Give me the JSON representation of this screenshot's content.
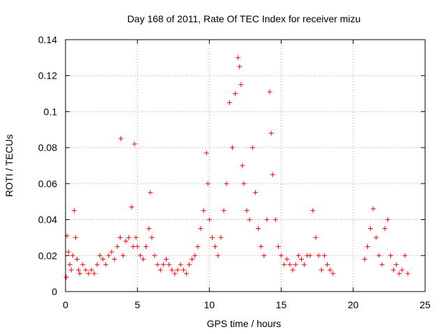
{
  "chart_data": {
    "type": "scatter",
    "title": "Day 168 of 2011, Rate Of TEC Index for receiver mizu",
    "xlabel": "GPS time / hours",
    "ylabel": "ROTI / TECUs",
    "xlim": [
      0,
      25
    ],
    "ylim": [
      0,
      0.14
    ],
    "xticks": [
      0,
      5,
      10,
      15,
      20,
      25
    ],
    "xtick_labels": [
      "0",
      "5",
      "10",
      "15",
      "20",
      "25"
    ],
    "yticks": [
      0,
      0.02,
      0.04,
      0.06,
      0.08,
      0.1,
      0.12,
      0.14
    ],
    "ytick_labels": [
      "0",
      "0.02",
      "0.04",
      "0.06",
      "0.08",
      "0.1",
      "0.12",
      "0.14"
    ],
    "grid": true,
    "marker": "+",
    "color": "#ff0000",
    "series": [
      {
        "name": "ROTI",
        "note": "representative sample of dense red + markers, estimated from the plot",
        "x": [
          0.05,
          0.1,
          0.2,
          0.3,
          0.4,
          0.5,
          0.6,
          0.7,
          0.8,
          0.9,
          1.0,
          1.2,
          1.4,
          1.6,
          1.8,
          2.0,
          2.2,
          2.4,
          2.6,
          2.8,
          3.0,
          3.2,
          3.4,
          3.6,
          3.8,
          3.85,
          4.0,
          4.2,
          4.4,
          4.6,
          4.7,
          4.8,
          4.9,
          5.0,
          5.2,
          5.4,
          5.6,
          5.8,
          5.9,
          6.0,
          6.2,
          6.4,
          6.6,
          6.8,
          7.0,
          7.2,
          7.4,
          7.6,
          7.8,
          8.0,
          8.2,
          8.4,
          8.6,
          8.8,
          9.0,
          9.2,
          9.4,
          9.6,
          9.8,
          9.9,
          10.0,
          10.2,
          10.4,
          10.6,
          10.8,
          11.0,
          11.2,
          11.4,
          11.6,
          11.8,
          12.0,
          12.1,
          12.2,
          12.3,
          12.4,
          12.6,
          12.8,
          13.0,
          13.2,
          13.4,
          13.6,
          13.8,
          14.0,
          14.2,
          14.3,
          14.4,
          14.6,
          14.8,
          15.0,
          15.2,
          15.4,
          15.6,
          15.8,
          16.0,
          16.2,
          16.4,
          16.6,
          16.8,
          17.0,
          17.2,
          17.4,
          17.6,
          17.8,
          18.0,
          18.2,
          18.4,
          18.6,
          20.8,
          21.0,
          21.2,
          21.4,
          21.6,
          21.8,
          22.0,
          22.2,
          22.4,
          22.6,
          22.8,
          23.0,
          23.2,
          23.4,
          23.6,
          23.8
        ],
        "y": [
          0.008,
          0.031,
          0.022,
          0.015,
          0.012,
          0.02,
          0.045,
          0.03,
          0.018,
          0.012,
          0.01,
          0.015,
          0.012,
          0.01,
          0.012,
          0.01,
          0.015,
          0.02,
          0.018,
          0.015,
          0.02,
          0.022,
          0.018,
          0.025,
          0.03,
          0.085,
          0.02,
          0.028,
          0.03,
          0.047,
          0.025,
          0.082,
          0.03,
          0.025,
          0.02,
          0.018,
          0.025,
          0.035,
          0.055,
          0.03,
          0.02,
          0.015,
          0.012,
          0.015,
          0.018,
          0.015,
          0.012,
          0.01,
          0.012,
          0.015,
          0.012,
          0.01,
          0.015,
          0.018,
          0.02,
          0.025,
          0.035,
          0.045,
          0.077,
          0.06,
          0.04,
          0.03,
          0.025,
          0.02,
          0.03,
          0.045,
          0.06,
          0.105,
          0.08,
          0.11,
          0.13,
          0.125,
          0.115,
          0.07,
          0.06,
          0.045,
          0.04,
          0.08,
          0.055,
          0.035,
          0.025,
          0.02,
          0.04,
          0.111,
          0.088,
          0.065,
          0.04,
          0.025,
          0.02,
          0.015,
          0.018,
          0.015,
          0.012,
          0.015,
          0.02,
          0.018,
          0.015,
          0.02,
          0.02,
          0.045,
          0.03,
          0.02,
          0.012,
          0.02,
          0.015,
          0.012,
          0.01,
          0.018,
          0.025,
          0.035,
          0.046,
          0.03,
          0.02,
          0.015,
          0.035,
          0.04,
          0.02,
          0.012,
          0.015,
          0.01,
          0.012,
          0.02,
          0.01
        ]
      }
    ]
  }
}
